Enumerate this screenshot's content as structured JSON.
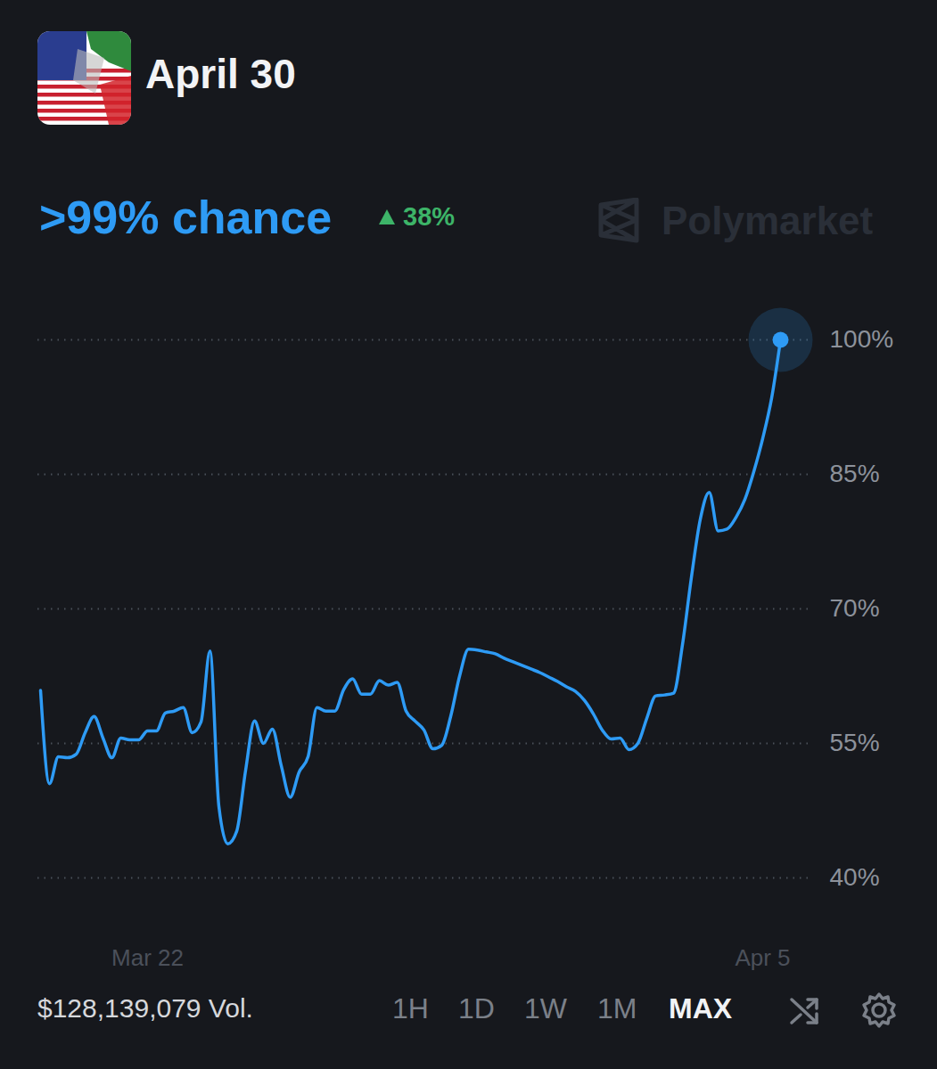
{
  "chart_data": {
    "type": "line",
    "title": "April 30",
    "subtitle": ">99% chance",
    "annotations": {
      "change": "38%",
      "watermark": "Polymarket",
      "volume": "$128,139,079 Vol.",
      "ranges": [
        "1H",
        "1D",
        "1W",
        "1M",
        "MAX"
      ],
      "selected_range": "MAX"
    },
    "color": "#2e9bf5",
    "grid": true,
    "categories": [
      null,
      null,
      null,
      null,
      null,
      null,
      null,
      null,
      null,
      null,
      null,
      null,
      "Mar 22",
      null,
      null,
      null,
      null,
      null,
      null,
      null,
      null,
      null,
      null,
      null,
      null,
      null,
      null,
      null,
      null,
      null,
      null,
      null,
      null,
      null,
      null,
      null,
      null,
      null,
      null,
      null,
      null,
      null,
      null,
      null,
      null,
      null,
      null,
      null,
      null,
      null,
      null,
      null,
      null,
      null,
      null,
      null,
      null,
      null,
      null,
      null,
      null,
      null,
      null,
      null,
      null,
      null,
      null,
      null,
      null,
      null,
      null,
      null,
      null,
      null,
      null,
      null,
      null,
      null,
      null,
      null,
      null,
      "Apr 5",
      null,
      null
    ],
    "values": [
      60.9,
      50.5,
      53.5,
      53.4,
      53.8,
      56.2,
      58.0,
      55.6,
      53.4,
      55.6,
      55.4,
      55.4,
      56.4,
      56.4,
      58.4,
      58.6,
      59.0,
      56.2,
      57.4,
      65.3,
      48.0,
      43.8,
      45.2,
      52.0,
      57.5,
      55.0,
      56.6,
      52.5,
      49.0,
      51.8,
      53.5,
      59.0,
      58.6,
      58.6,
      61.0,
      62.2,
      60.5,
      60.5,
      62.0,
      61.5,
      61.8,
      58.6,
      57.5,
      56.5,
      54.4,
      54.8,
      58.0,
      62.5,
      65.5,
      65.4,
      65.2,
      65.0,
      64.5,
      64.1,
      63.7,
      63.3,
      62.9,
      62.4,
      61.9,
      61.3,
      60.8,
      59.8,
      58.3,
      56.5,
      55.5,
      55.6,
      54.3,
      55.0,
      57.8,
      60.3,
      60.4,
      60.6,
      66.0,
      73.5,
      80.0,
      83.0,
      78.7,
      78.9,
      80.2,
      82.2,
      85.3,
      89.0,
      93.5,
      100
    ],
    "ylim": [
      40,
      100
    ],
    "yticks": [
      {
        "value": 40,
        "label": "40%"
      },
      {
        "value": 55,
        "label": "55%"
      },
      {
        "value": 70,
        "label": "70%"
      },
      {
        "value": 85,
        "label": "85%"
      },
      {
        "value": 100,
        "label": "100%"
      }
    ]
  }
}
